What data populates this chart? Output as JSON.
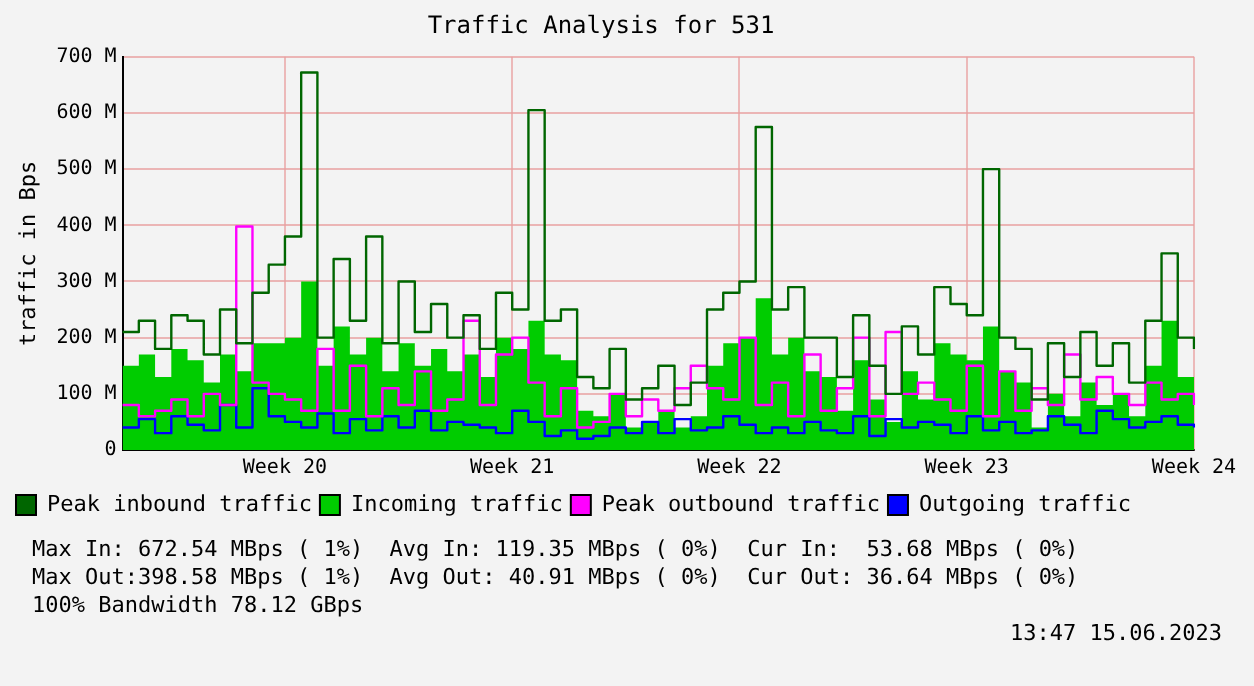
{
  "chart_data": {
    "type": "line",
    "title": "Traffic Analysis for 531",
    "ylabel": "traffic in Bps",
    "categories": [
      null,
      null,
      null,
      null,
      null,
      null,
      null,
      null,
      null,
      null,
      "Week 20",
      null,
      null,
      null,
      null,
      null,
      null,
      null,
      null,
      null,
      null,
      null,
      null,
      null,
      "Week 21",
      null,
      null,
      null,
      null,
      null,
      null,
      null,
      null,
      null,
      null,
      null,
      null,
      null,
      "Week 22",
      null,
      null,
      null,
      null,
      null,
      null,
      null,
      null,
      null,
      null,
      null,
      null,
      null,
      "Week 23",
      null,
      null,
      null,
      null,
      null,
      null,
      null,
      null,
      null,
      null,
      null,
      null,
      null,
      "Week 24"
    ],
    "series": [
      {
        "name": "Peak inbound traffic",
        "type": "step",
        "color": "#006600",
        "values": [
          210,
          230,
          180,
          240,
          230,
          170,
          250,
          190,
          280,
          330,
          380,
          672,
          200,
          340,
          230,
          380,
          190,
          300,
          210,
          260,
          200,
          240,
          180,
          280,
          250,
          605,
          230,
          250,
          130,
          110,
          180,
          90,
          110,
          150,
          80,
          120,
          250,
          280,
          300,
          575,
          250,
          290,
          200,
          200,
          130,
          240,
          150,
          100,
          220,
          170,
          290,
          260,
          240,
          500,
          200,
          180,
          90,
          190,
          130,
          210,
          150,
          190,
          120,
          230,
          350,
          200,
          180
        ]
      },
      {
        "name": "Incoming traffic",
        "type": "area",
        "color": "#00cc00",
        "values": [
          150,
          170,
          130,
          180,
          160,
          120,
          170,
          140,
          190,
          190,
          200,
          300,
          150,
          220,
          170,
          200,
          140,
          190,
          150,
          180,
          140,
          170,
          130,
          200,
          180,
          230,
          170,
          160,
          70,
          60,
          100,
          40,
          50,
          70,
          40,
          60,
          150,
          190,
          200,
          270,
          170,
          200,
          140,
          130,
          70,
          160,
          90,
          50,
          140,
          90,
          190,
          170,
          160,
          220,
          140,
          120,
          40,
          100,
          60,
          120,
          80,
          100,
          60,
          150,
          230,
          130,
          100
        ]
      },
      {
        "name": "Peak outbound traffic",
        "type": "step",
        "color": "#ff00ff",
        "values": [
          80,
          60,
          70,
          90,
          60,
          100,
          80,
          398,
          120,
          100,
          90,
          70,
          180,
          70,
          150,
          60,
          110,
          80,
          140,
          70,
          90,
          230,
          80,
          170,
          200,
          120,
          60,
          110,
          40,
          50,
          100,
          60,
          90,
          70,
          110,
          150,
          110,
          90,
          200,
          80,
          120,
          60,
          170,
          70,
          110,
          200,
          60,
          210,
          100,
          120,
          90,
          70,
          150,
          60,
          140,
          70,
          110,
          80,
          170,
          90,
          130,
          100,
          80,
          120,
          90,
          100,
          80
        ]
      },
      {
        "name": "Outgoing traffic",
        "type": "step",
        "color": "#0000ff",
        "values": [
          40,
          55,
          30,
          60,
          45,
          35,
          80,
          40,
          110,
          60,
          50,
          40,
          65,
          30,
          55,
          35,
          60,
          40,
          70,
          35,
          50,
          45,
          40,
          30,
          70,
          50,
          25,
          35,
          20,
          25,
          40,
          30,
          50,
          30,
          55,
          35,
          40,
          60,
          45,
          30,
          40,
          30,
          50,
          35,
          30,
          60,
          25,
          55,
          40,
          50,
          45,
          30,
          60,
          35,
          50,
          30,
          35,
          60,
          45,
          30,
          70,
          55,
          40,
          50,
          60,
          45,
          40
        ]
      }
    ],
    "ylim": [
      0,
      700
    ],
    "yticks": [
      {
        "value": 0,
        "label": "0"
      },
      {
        "value": 100,
        "label": "100 M"
      },
      {
        "value": 200,
        "label": "200 M"
      },
      {
        "value": 300,
        "label": "300 M"
      },
      {
        "value": 400,
        "label": "400 M"
      },
      {
        "value": 500,
        "label": "500 M"
      },
      {
        "value": 600,
        "label": "600 M"
      },
      {
        "value": 700,
        "label": "700 M"
      }
    ],
    "grid": true,
    "legend": "bottom",
    "marker": "none",
    "line_style": "solid",
    "annotations": [
      "Max In: 672.54 MBps ( 1%)  Avg In: 119.35 MBps ( 0%)  Cur In:  53.68 MBps ( 0%)",
      "Max Out:398.58 MBps ( 1%)  Avg Out: 40.91 MBps ( 0%)  Cur Out: 36.64 MBps ( 0%)",
      "100% Bandwidth 78.12 GBps",
      "13:47 15.06.2023"
    ]
  }
}
